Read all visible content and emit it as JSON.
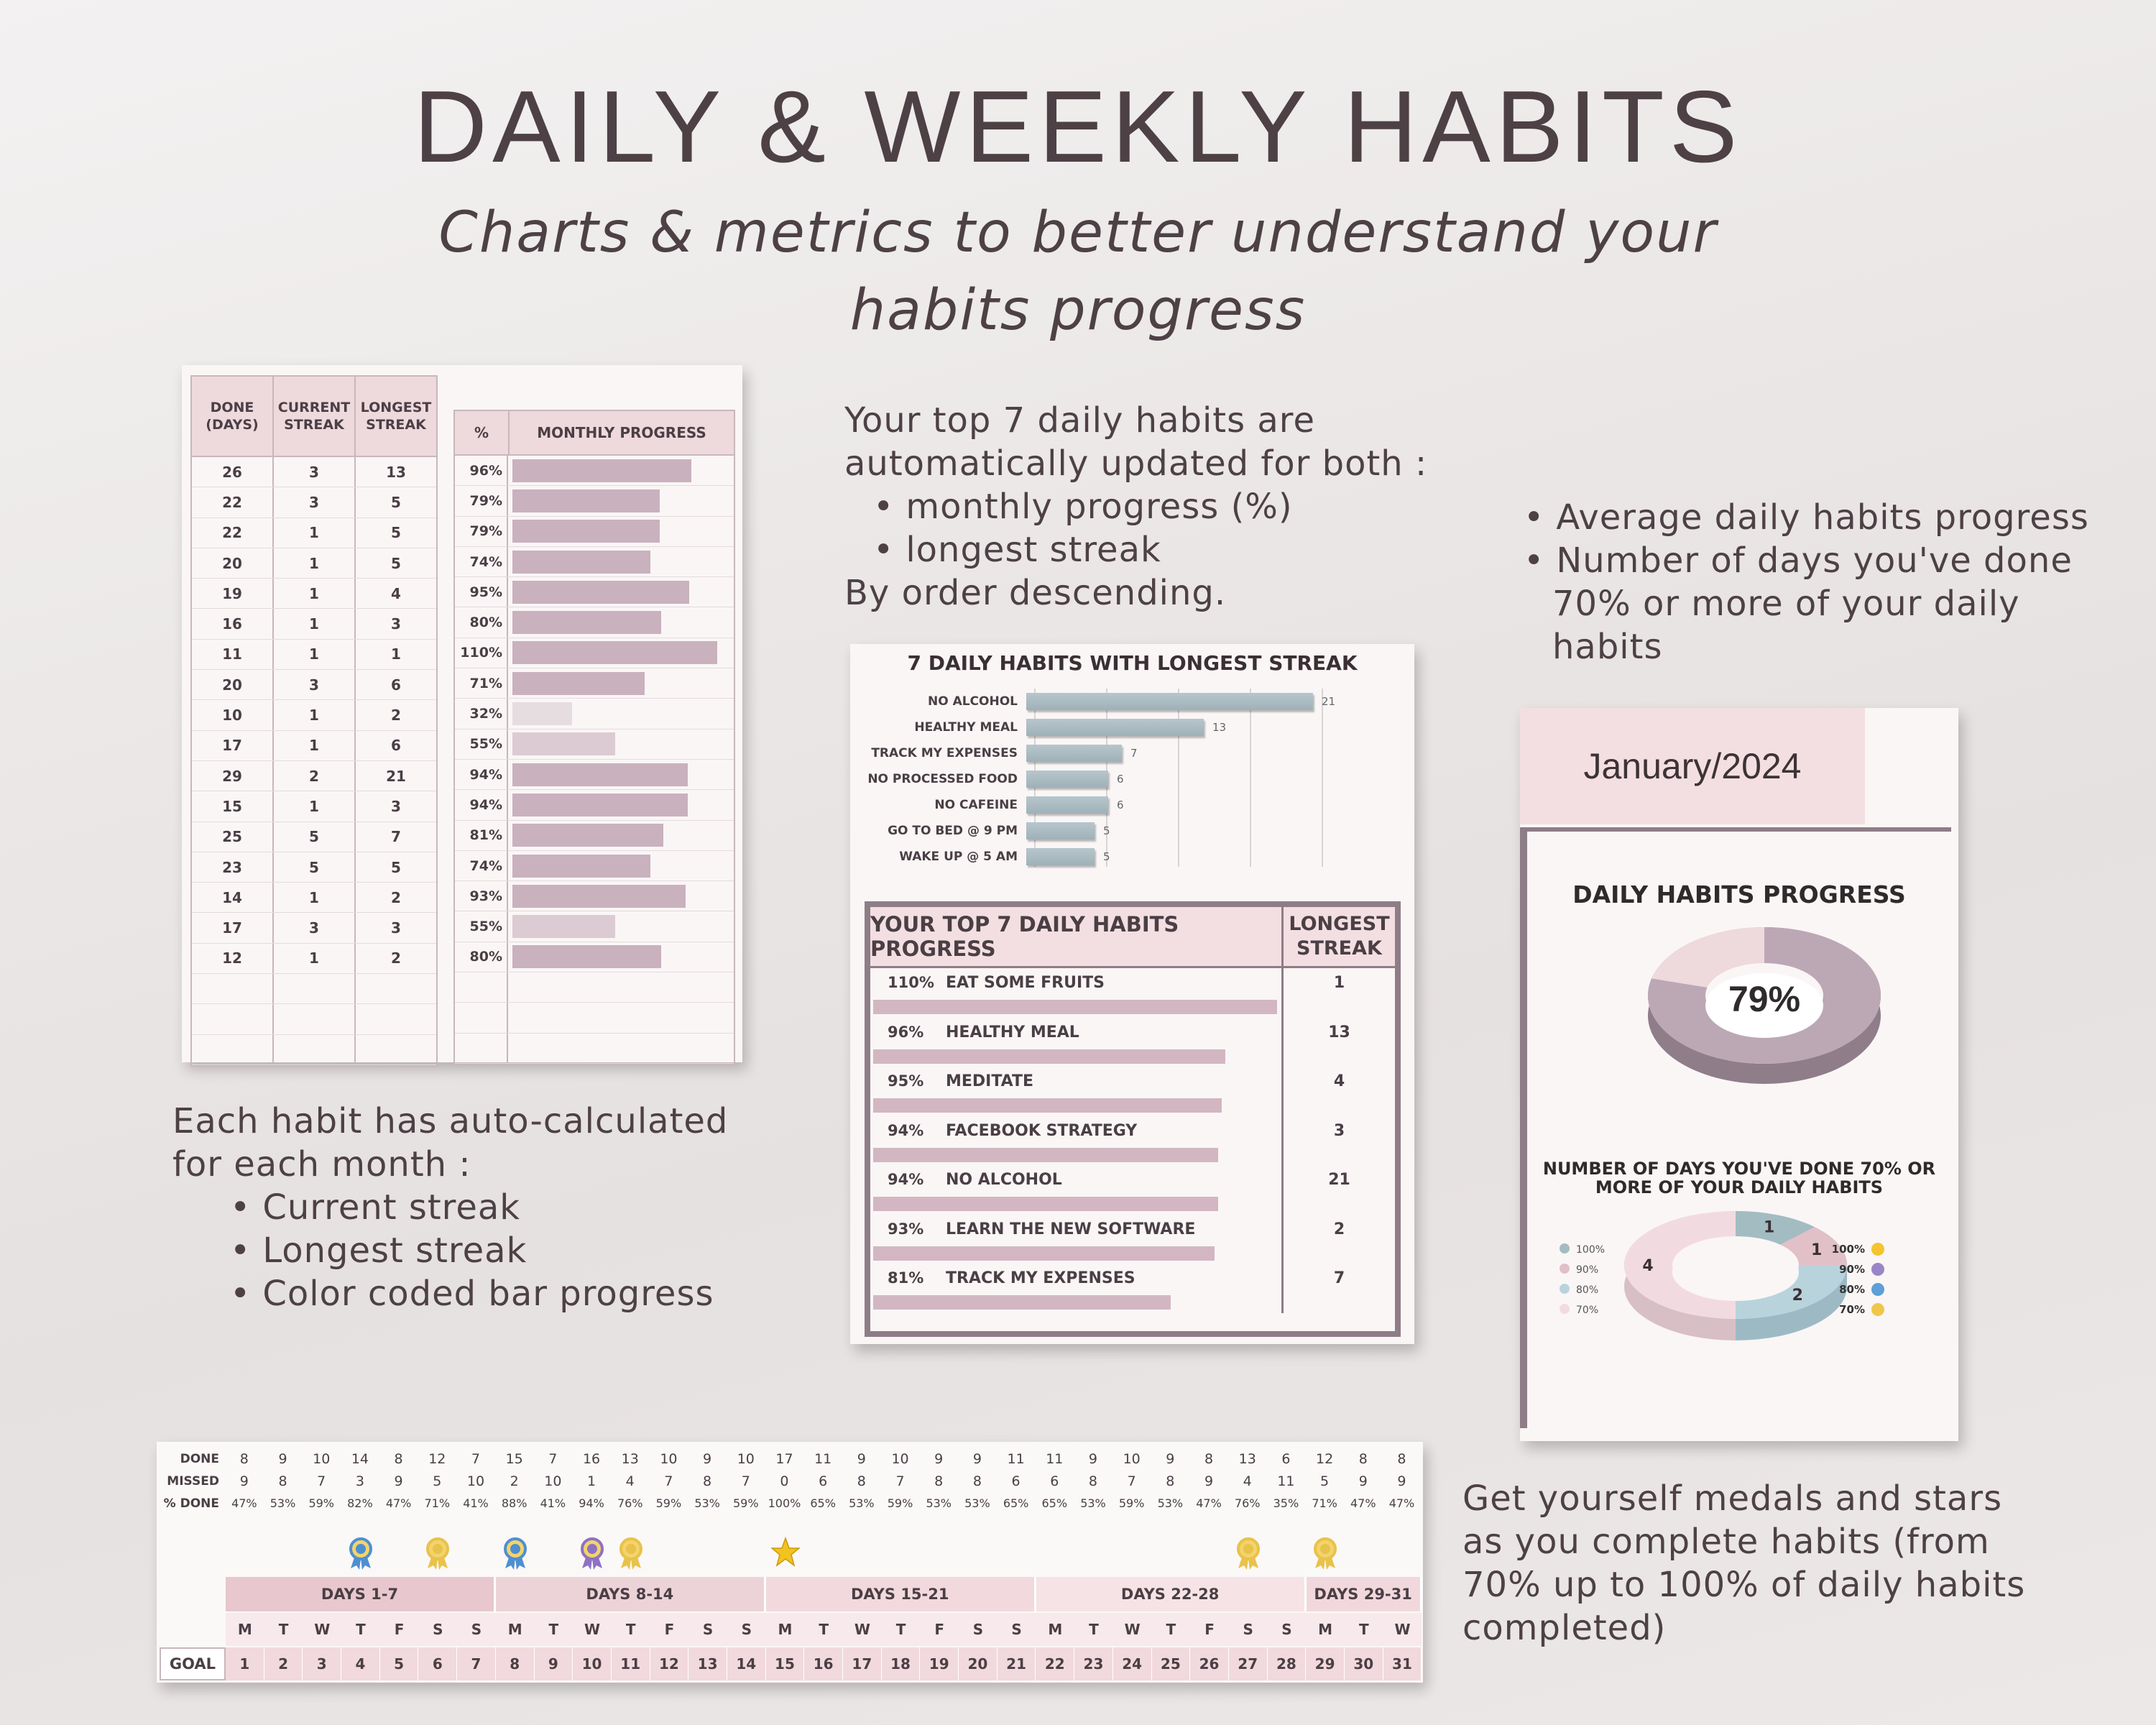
{
  "header": {
    "title": "DAILY & WEEKLY HABITS",
    "subtitle_line1": "Charts & metrics to better understand your",
    "subtitle_line2": "habits progress"
  },
  "blurb_top": {
    "line1": "Your top 7 daily habits are",
    "line2": "automatically updated for both :",
    "bullet1": "monthly progress (%)",
    "bullet2": "longest streak",
    "line3": "By order descending."
  },
  "blurb_right": {
    "bullet1": "Average daily habits progress",
    "bullet2_line1": "Number of days you've done",
    "bullet2_line2": "70% or more of your daily",
    "bullet2_line3": "habits"
  },
  "blurb_left": {
    "line1": "Each habit has auto-calculated",
    "line2": "for each month :",
    "bullet1": "Current streak",
    "bullet2": "Longest streak",
    "bullet3": "Color coded bar progress"
  },
  "blurb_bottom": {
    "line1": "Get yourself medals and stars",
    "line2": "as you complete habits (from",
    "line3": "70% up to 100% of daily habits",
    "line4": "completed)"
  },
  "sheet1": {
    "headers": {
      "done": "DONE (DAYS)",
      "current": "CURRENT STREAK",
      "longest": "LONGEST STREAK",
      "pct": "%",
      "progress": "MONTHLY PROGRESS"
    },
    "rows": [
      {
        "done": "26",
        "current": "3",
        "longest": "13",
        "pct": "96%",
        "value": 96
      },
      {
        "done": "22",
        "current": "3",
        "longest": "5",
        "pct": "79%",
        "value": 79
      },
      {
        "done": "22",
        "current": "1",
        "longest": "5",
        "pct": "79%",
        "value": 79
      },
      {
        "done": "20",
        "current": "1",
        "longest": "5",
        "pct": "74%",
        "value": 74
      },
      {
        "done": "19",
        "current": "1",
        "longest": "4",
        "pct": "95%",
        "value": 95
      },
      {
        "done": "16",
        "current": "1",
        "longest": "3",
        "pct": "80%",
        "value": 80
      },
      {
        "done": "11",
        "current": "1",
        "longest": "1",
        "pct": "110%",
        "value": 110
      },
      {
        "done": "20",
        "current": "3",
        "longest": "6",
        "pct": "71%",
        "value": 71
      },
      {
        "done": "10",
        "current": "1",
        "longest": "2",
        "pct": "32%",
        "value": 32
      },
      {
        "done": "17",
        "current": "1",
        "longest": "6",
        "pct": "55%",
        "value": 55
      },
      {
        "done": "29",
        "current": "2",
        "longest": "21",
        "pct": "94%",
        "value": 94
      },
      {
        "done": "15",
        "current": "1",
        "longest": "3",
        "pct": "94%",
        "value": 94
      },
      {
        "done": "25",
        "current": "5",
        "longest": "7",
        "pct": "81%",
        "value": 81
      },
      {
        "done": "23",
        "current": "5",
        "longest": "5",
        "pct": "74%",
        "value": 74
      },
      {
        "done": "14",
        "current": "1",
        "longest": "2",
        "pct": "93%",
        "value": 93
      },
      {
        "done": "17",
        "current": "3",
        "longest": "3",
        "pct": "55%",
        "value": 55
      },
      {
        "done": "12",
        "current": "1",
        "longest": "2",
        "pct": "80%",
        "value": 80
      }
    ]
  },
  "chart_data": [
    {
      "type": "bar",
      "title": "7 DAILY HABITS WITH LONGEST STREAK",
      "categories": [
        "NO ALCOHOL",
        "HEALTHY MEAL",
        "TRACK MY EXPENSES",
        "NO PROCESSED FOOD",
        "NO CAFEINE",
        "GO TO BED @ 9 PM",
        "WAKE UP @ 5 AM"
      ],
      "values": [
        21,
        13,
        7,
        6,
        6,
        5,
        5
      ],
      "orientation": "horizontal",
      "xlim": [
        0,
        25
      ],
      "grid": true
    },
    {
      "type": "pie",
      "title": "DAILY HABITS PROGRESS",
      "values": [
        79,
        21
      ],
      "center_label": "79%",
      "donut": true
    },
    {
      "type": "pie",
      "title_line1": "NUMBER OF DAYS YOU'VE DONE 70% OR",
      "title_line2": "MORE OF YOUR DAILY HABITS",
      "categories": [
        "100%",
        "90%",
        "80%",
        "70%"
      ],
      "values": [
        1,
        1,
        2,
        4
      ],
      "colors": [
        "#a3bcc2",
        "#e1c0c8",
        "#b9d3dc",
        "#f2dbe0"
      ],
      "donut": true,
      "legend": "left"
    }
  ],
  "top7": {
    "header": "YOUR TOP 7 DAILY HABITS PROGRESS",
    "streak_header_1": "LONGEST",
    "streak_header_2": "STREAK",
    "rows": [
      {
        "pct": "110%",
        "name": "EAT SOME FRUITS",
        "streak": "1",
        "value": 110
      },
      {
        "pct": "96%",
        "name": "HEALTHY MEAL",
        "streak": "13",
        "value": 96
      },
      {
        "pct": "95%",
        "name": "MEDITATE",
        "streak": "4",
        "value": 95
      },
      {
        "pct": "94%",
        "name": "FACEBOOK STRATEGY",
        "streak": "3",
        "value": 94
      },
      {
        "pct": "94%",
        "name": "NO ALCOHOL",
        "streak": "21",
        "value": 94
      },
      {
        "pct": "93%",
        "name": "LEARN THE NEW SOFTWARE",
        "streak": "2",
        "value": 93
      },
      {
        "pct": "81%",
        "name": "TRACK MY EXPENSES",
        "streak": "7",
        "value": 81
      }
    ]
  },
  "dashboard": {
    "month": "January/2024",
    "legend_right": [
      "100%",
      "90%",
      "80%",
      "70%"
    ],
    "segment_labels": [
      "1",
      "1",
      "2",
      "4"
    ]
  },
  "strip": {
    "labels": {
      "done": "DONE",
      "missed": "MISSED",
      "pct": "% DONE",
      "goal": "GOAL"
    },
    "done": [
      "8",
      "9",
      "10",
      "14",
      "8",
      "12",
      "7",
      "15",
      "7",
      "16",
      "13",
      "10",
      "9",
      "10",
      "17",
      "11",
      "9",
      "10",
      "9",
      "9",
      "11",
      "11",
      "9",
      "10",
      "9",
      "8",
      "13",
      "6",
      "12",
      "8",
      "8"
    ],
    "missed": [
      "9",
      "8",
      "7",
      "3",
      "9",
      "5",
      "10",
      "2",
      "10",
      "1",
      "4",
      "7",
      "8",
      "7",
      "0",
      "6",
      "8",
      "7",
      "8",
      "8",
      "6",
      "6",
      "8",
      "7",
      "8",
      "9",
      "4",
      "11",
      "5",
      "9",
      "9"
    ],
    "pct": [
      "47%",
      "53%",
      "59%",
      "82%",
      "47%",
      "71%",
      "41%",
      "88%",
      "41%",
      "94%",
      "76%",
      "59%",
      "53%",
      "59%",
      "100%",
      "65%",
      "53%",
      "59%",
      "53%",
      "53%",
      "65%",
      "65%",
      "53%",
      "59%",
      "53%",
      "47%",
      "76%",
      "35%",
      "71%",
      "47%",
      "47%"
    ],
    "weeks": [
      "DAYS 1-7",
      "DAYS 8-14",
      "DAYS 15-21",
      "DAYS 22-28",
      "DAYS 29-31"
    ],
    "day_letters": [
      "M",
      "T",
      "W",
      "T",
      "F",
      "S",
      "S",
      "M",
      "T",
      "W",
      "T",
      "F",
      "S",
      "S",
      "M",
      "T",
      "W",
      "T",
      "F",
      "S",
      "S",
      "M",
      "T",
      "W",
      "T",
      "F",
      "S",
      "S",
      "M",
      "T",
      "W"
    ],
    "days": [
      "1",
      "2",
      "3",
      "4",
      "5",
      "6",
      "7",
      "8",
      "9",
      "10",
      "11",
      "12",
      "13",
      "14",
      "15",
      "16",
      "17",
      "18",
      "19",
      "20",
      "21",
      "22",
      "23",
      "24",
      "25",
      "26",
      "27",
      "28",
      "29",
      "30",
      "31"
    ],
    "medals": [
      {
        "day": 4,
        "icon": "medal-blue-icon"
      },
      {
        "day": 6,
        "icon": "medal-gold-icon"
      },
      {
        "day": 8,
        "icon": "medal-blue-icon"
      },
      {
        "day": 10,
        "icon": "medal-purple-icon"
      },
      {
        "day": 11,
        "icon": "medal-gold-icon"
      },
      {
        "day": 15,
        "icon": "star-icon"
      },
      {
        "day": 27,
        "icon": "medal-gold-icon"
      },
      {
        "day": 29,
        "icon": "medal-gold-icon"
      }
    ]
  }
}
